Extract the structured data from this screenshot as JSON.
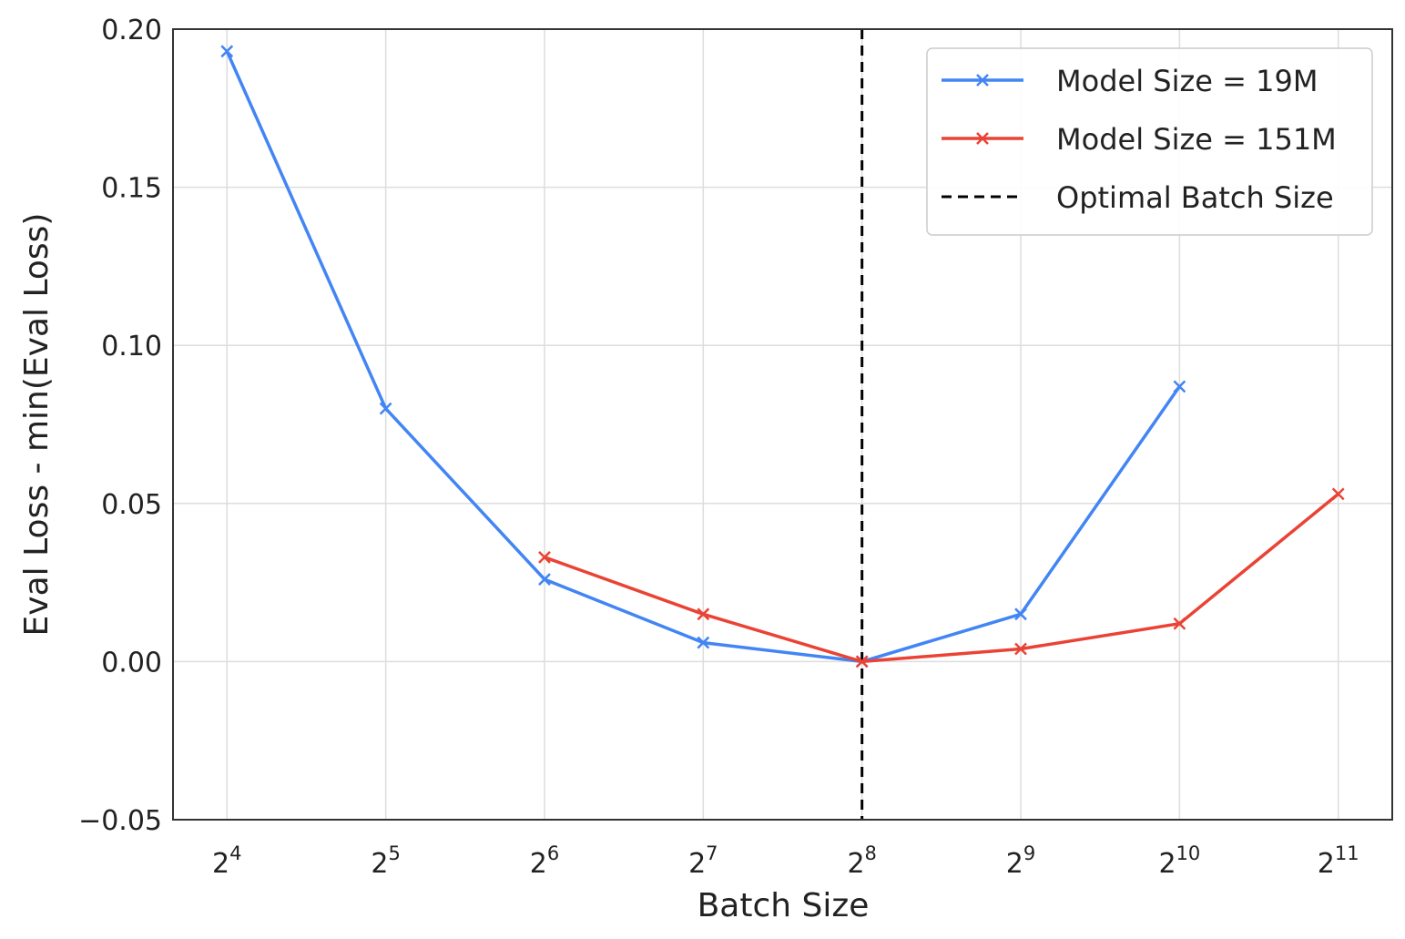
{
  "chart_data": {
    "type": "line",
    "title": "",
    "xlabel": "Batch Size",
    "ylabel": "Eval Loss - min(Eval Loss)",
    "x_scale": "log2",
    "x_ticks": [
      {
        "exp": 4,
        "base": "2",
        "sup": "4"
      },
      {
        "exp": 5,
        "base": "2",
        "sup": "5"
      },
      {
        "exp": 6,
        "base": "2",
        "sup": "6"
      },
      {
        "exp": 7,
        "base": "2",
        "sup": "7"
      },
      {
        "exp": 8,
        "base": "2",
        "sup": "8"
      },
      {
        "exp": 9,
        "base": "2",
        "sup": "9"
      },
      {
        "exp": 10,
        "base": "2",
        "sup": "10"
      },
      {
        "exp": 11,
        "base": "2",
        "sup": "11"
      }
    ],
    "xlim_exp": [
      3.66,
      11.34
    ],
    "ylim": [
      -0.05,
      0.2
    ],
    "y_ticks": [
      {
        "value": -0.05,
        "label": "−0.05"
      },
      {
        "value": 0.0,
        "label": "0.00"
      },
      {
        "value": 0.05,
        "label": "0.05"
      },
      {
        "value": 0.1,
        "label": "0.10"
      },
      {
        "value": 0.15,
        "label": "0.15"
      },
      {
        "value": 0.2,
        "label": "0.20"
      }
    ],
    "grid": true,
    "legend_position": "top-right",
    "series": [
      {
        "name": "Model Size = 19M",
        "color": "#4285f4",
        "marker": "x",
        "x_exp": [
          4,
          5,
          6,
          7,
          8,
          9,
          10
        ],
        "values": [
          0.193,
          0.08,
          0.026,
          0.006,
          0.0,
          0.015,
          0.087
        ]
      },
      {
        "name": "Model Size = 151M",
        "color": "#ea4335",
        "marker": "x",
        "x_exp": [
          6,
          7,
          8,
          9,
          10,
          11
        ],
        "values": [
          0.033,
          0.015,
          0.0,
          0.004,
          0.012,
          0.053
        ]
      }
    ],
    "vlines": [
      {
        "name": "Optimal Batch Size",
        "x_exp": 8,
        "color": "#000000",
        "style": "dashed"
      }
    ]
  }
}
